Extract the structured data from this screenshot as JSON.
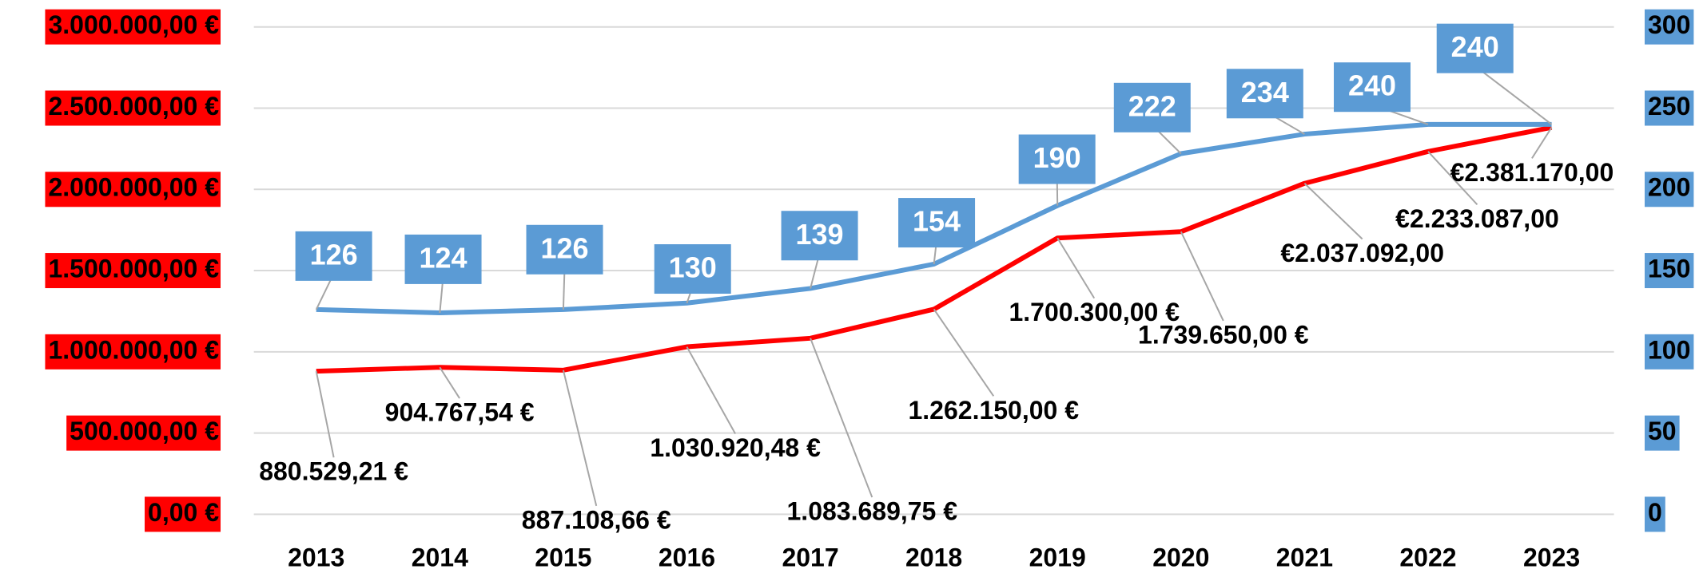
{
  "chart_data": {
    "type": "line",
    "categories": [
      "2013",
      "2014",
      "2015",
      "2016",
      "2017",
      "2018",
      "2019",
      "2020",
      "2021",
      "2022",
      "2023"
    ],
    "series": [
      {
        "name": null,
        "color": "#ff0000",
        "axis": "y",
        "values": [
          880529.21,
          904767.54,
          887108.66,
          1030920.48,
          1083689.75,
          1262150,
          1700300,
          1739650,
          2037092,
          2233087,
          2381170
        ],
        "value_labels": [
          "880.529,21 €",
          "904.767,54 €",
          "887.108,66 €",
          "1.030.920,48 €",
          "1.083.689,75 €",
          "1.262.150,00 €",
          "1.700.300,00 €",
          "1.739.650,00 €",
          "€2.037.092,00",
          "€2.233.087,00",
          "€2.381.170,00"
        ]
      },
      {
        "name": null,
        "color": "#5b9bd5",
        "axis": "y2",
        "values": [
          126,
          124,
          126,
          130,
          139,
          154,
          190,
          222,
          234,
          240,
          240
        ]
      }
    ],
    "ylim": [
      0,
      3000000
    ],
    "yticks": [
      {
        "value": 0,
        "label": "0,00 €"
      },
      {
        "value": 500000,
        "label": "500.000,00 €"
      },
      {
        "value": 1000000,
        "label": "1.000.000,00 €"
      },
      {
        "value": 1500000,
        "label": "1.500.000,00 €"
      },
      {
        "value": 2000000,
        "label": "2.000.000,00 €"
      },
      {
        "value": 2500000,
        "label": "2.500.000,00 €"
      },
      {
        "value": 3000000,
        "label": "3.000.000,00 €"
      }
    ],
    "y2lim": [
      0,
      300
    ],
    "y2ticks": [
      0,
      50,
      100,
      150,
      200,
      250,
      300
    ],
    "grid": true
  }
}
